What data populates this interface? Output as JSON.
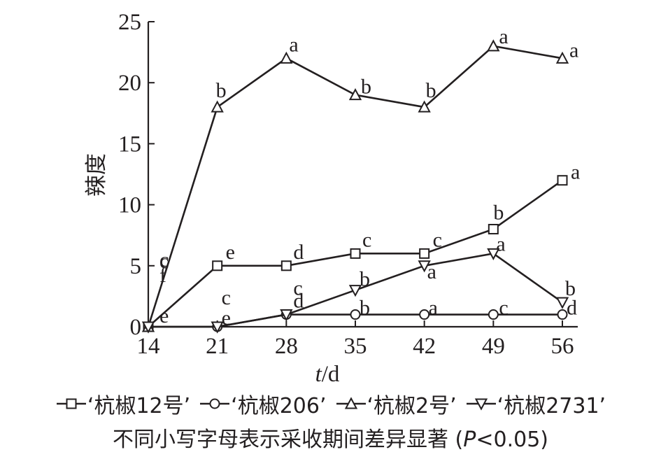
{
  "chart_data": {
    "type": "line",
    "xlabel": "t/d",
    "ylabel": "辣度",
    "x": [
      14,
      21,
      28,
      35,
      42,
      49,
      56
    ],
    "xticks": [
      "14",
      "21",
      "28",
      "35",
      "42",
      "49",
      "56"
    ],
    "yticks": [
      "0",
      "5",
      "10",
      "15",
      "20",
      "25"
    ],
    "ylim": [
      0,
      25
    ],
    "xlim": [
      14,
      56
    ],
    "grid": false,
    "legend_position": "bottom",
    "series": [
      {
        "name": "‘杭椒12号’",
        "marker": "square",
        "values": [
          0,
          5,
          5,
          6,
          6,
          8,
          12
        ],
        "annotations": [
          "c",
          "e",
          "d",
          "c",
          "c",
          "b",
          "a"
        ]
      },
      {
        "name": "‘杭椒206’",
        "marker": "circle",
        "values": [
          0,
          0,
          1,
          1,
          1,
          1,
          1
        ],
        "annotations": [
          "e",
          "e",
          "d",
          "b",
          "a",
          "c",
          "d"
        ]
      },
      {
        "name": "‘杭椒2号’",
        "marker": "triangle-up",
        "values": [
          0,
          18,
          22,
          19,
          18,
          23,
          22
        ],
        "annotations": [
          "c",
          "b",
          "a",
          "b",
          "b",
          "a",
          "a"
        ]
      },
      {
        "name": "‘杭椒2731’",
        "marker": "triangle-down",
        "values": [
          0,
          0,
          1,
          3,
          5,
          6,
          2
        ],
        "annotations": [
          "f",
          "c",
          "c",
          "b",
          "a",
          "a",
          "b"
        ]
      }
    ],
    "note": "不同小写字母表示采收期间差异显著 (P<0.05)"
  }
}
